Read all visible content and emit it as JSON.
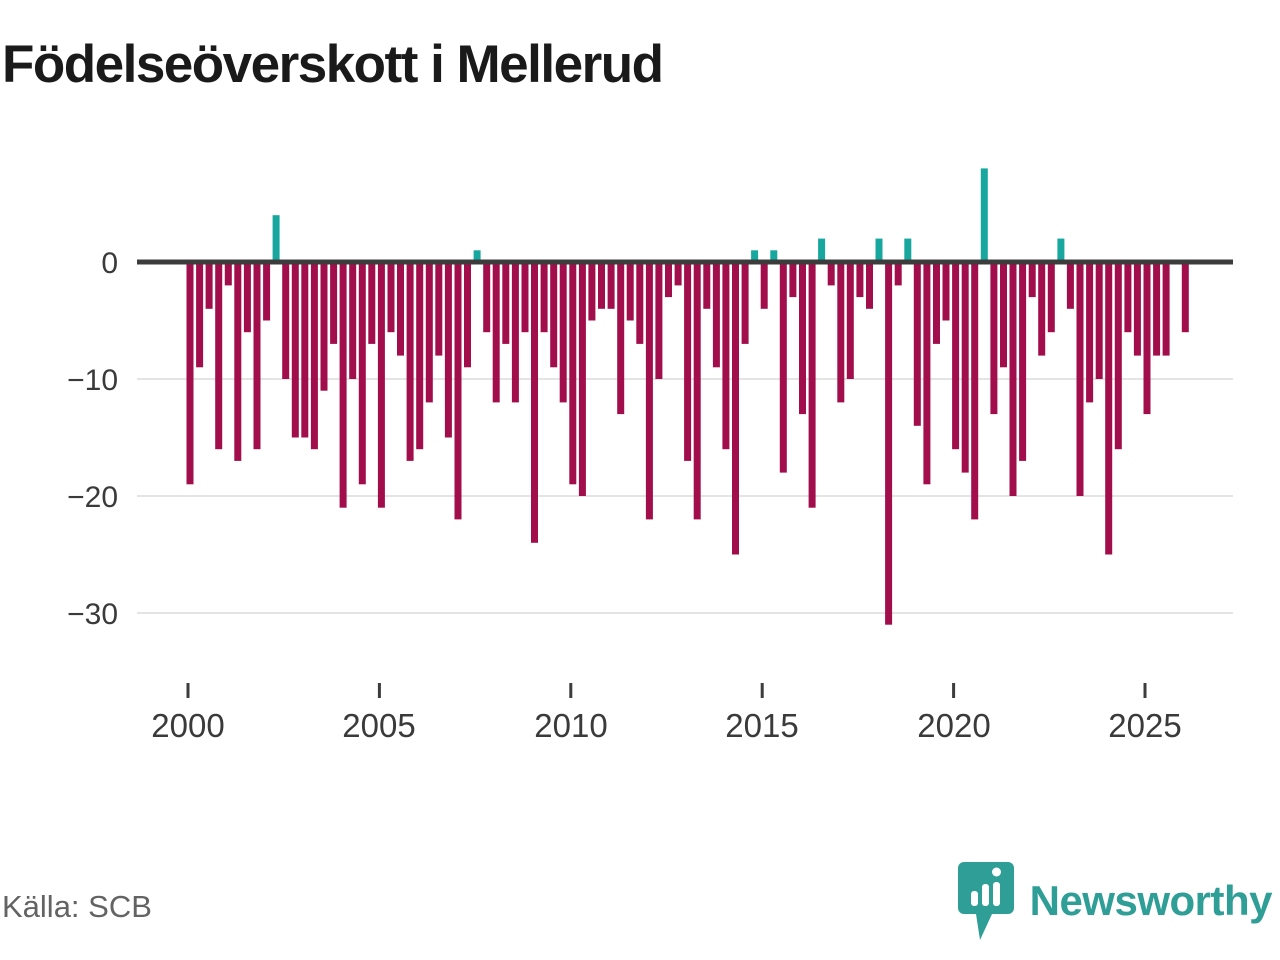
{
  "title": "Födelseöverskott i Mellerud",
  "source": "Källa: SCB",
  "brand": {
    "name": "Newsworthy",
    "color": "#2e9e96"
  },
  "colors": {
    "negative_bar": "#a20d4b",
    "positive_bar": "#17a79f",
    "zero_line": "#3c3c3c",
    "gridline": "#e4e4e4",
    "axis_text": "#3a3a3a"
  },
  "chart_data": {
    "type": "bar",
    "title": "Födelseöverskott i Mellerud",
    "xlabel": "",
    "ylabel": "",
    "period": "quarterly",
    "x_start": "2000 Q1",
    "x_end": "2026 Q1",
    "x_tick_labels": [
      "2000",
      "2005",
      "2010",
      "2015",
      "2020",
      "2025"
    ],
    "y_ticks": [
      0,
      -10,
      -20,
      -30
    ],
    "y_tick_labels": [
      "0",
      "−10",
      "−20",
      "−30"
    ],
    "ylim": [
      -32,
      9
    ],
    "grid": true,
    "legend": false,
    "values": [
      -19,
      -9,
      -4,
      -16,
      -2,
      -17,
      -6,
      -16,
      -5,
      4,
      -10,
      -15,
      -15,
      -16,
      -11,
      -7,
      -21,
      -10,
      -19,
      -7,
      -21,
      -6,
      -8,
      -17,
      -16,
      -12,
      -8,
      -15,
      -22,
      -9,
      1,
      -6,
      -12,
      -7,
      -12,
      -6,
      -24,
      -6,
      -9,
      -12,
      -19,
      -20,
      -5,
      -4,
      -4,
      -13,
      -5,
      -7,
      -22,
      -10,
      -3,
      -2,
      -17,
      -22,
      -4,
      -9,
      -16,
      -25,
      -7,
      1,
      -4,
      1,
      -18,
      -3,
      -13,
      -21,
      2,
      -2,
      -12,
      -10,
      -3,
      -4,
      2,
      -31,
      -2,
      2,
      -14,
      -19,
      -7,
      -5,
      -16,
      -18,
      -22,
      8,
      -13,
      -9,
      -20,
      -17,
      -3,
      -8,
      -6,
      2,
      -4,
      -20,
      -12,
      -10,
      -25,
      -16,
      -6,
      -8,
      -13,
      -8,
      -8,
      0,
      -6
    ]
  }
}
